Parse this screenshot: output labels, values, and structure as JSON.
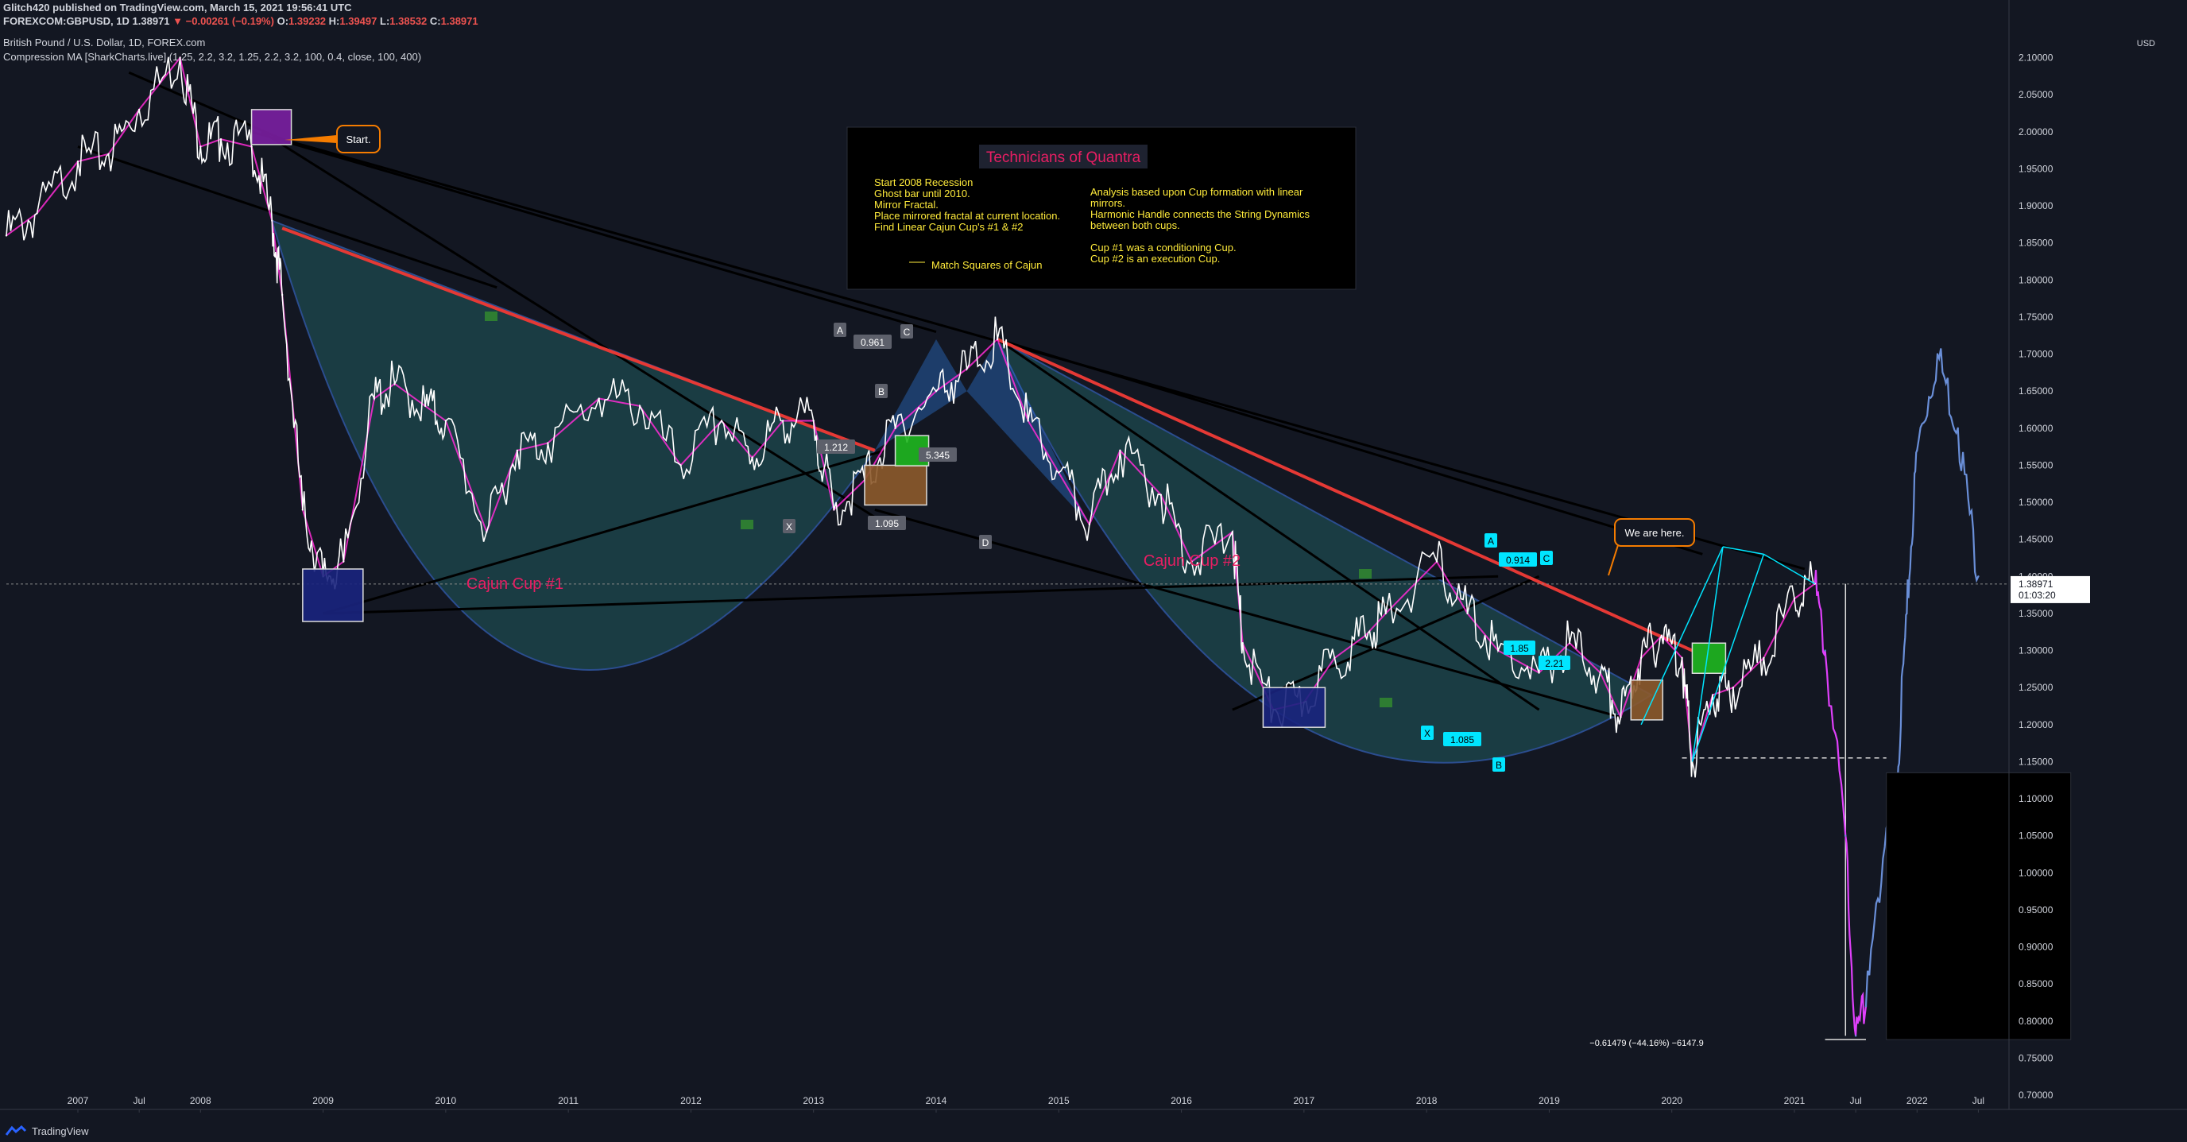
{
  "header": {
    "publish_line": "Glitch420 published on TradingView.com, March 15, 2021 19:56:41 UTC",
    "symbol": "FOREXCOM:GBPUSD, 1D",
    "last_price": "1.38971",
    "change": "▼ −0.00261 (−0.19%)",
    "ohlc": {
      "o_label": "O:",
      "o": "1.39232",
      "h_label": "H:",
      "h": "1.39497",
      "l_label": "L:",
      "l": "1.38532",
      "c_label": "C:",
      "c": "1.38971"
    },
    "instrument_name": "British Pound / U.S. Dollar, 1D, FOREX.com",
    "indicator": "Compression MA [SharkCharts.live] (1.25, 2.2, 3.2, 1.25, 2.2, 3.2, 100, 0.4, close, 100, 400)"
  },
  "info_box": {
    "title": "Technicians of Quantra",
    "left_lines": [
      "Start 2008 Recession",
      "Ghost bar until 2010.",
      "Mirror Fractal.",
      "Place mirrored fractal at current location.",
      "  Find Linear Cajun Cup's #1 & #2"
    ],
    "legend_label": "Match Squares of Cajun",
    "right_lines": [
      "Analysis based upon Cup formation with linear",
      "mirrors.",
      "Harmonic Handle connects the String Dynamics",
      "between both cups.",
      "",
      "Cup #1 was a conditioning Cup.",
      "Cup #2 is an execution Cup."
    ]
  },
  "annotations": {
    "start": "Start.",
    "we_are_here": "We are here.",
    "cup1": "Cajun Cup #1",
    "cup2": "Cajun Cup #2",
    "drop_measure": "−0.61479 (−44.16%) −6147.9",
    "pattern1": {
      "A": "A",
      "B": "B",
      "C": "C",
      "D": "D",
      "X": "X",
      "r1": "0.961",
      "r2": "1.212",
      "r3": "5.345",
      "r4": "1.095"
    },
    "pattern2": {
      "A": "A",
      "B": "B",
      "C": "C",
      "X": "X",
      "r1": "0.914",
      "r2": "1.085",
      "r3": "1.85",
      "r4": "2.21"
    }
  },
  "price_axis": {
    "currency": "USD",
    "ticks": [
      "2.10000",
      "2.05000",
      "2.00000",
      "1.95000",
      "1.90000",
      "1.85000",
      "1.80000",
      "1.75000",
      "1.70000",
      "1.65000",
      "1.60000",
      "1.55000",
      "1.50000",
      "1.45000",
      "1.40000",
      "1.35000",
      "1.30000",
      "1.25000",
      "1.20000",
      "1.15000",
      "1.10000",
      "1.05000",
      "1.00000",
      "0.95000",
      "0.90000",
      "0.85000",
      "0.80000",
      "0.75000",
      "0.70000"
    ],
    "current_price": "1.38971",
    "countdown": "01:03:20"
  },
  "time_axis": {
    "ticks": [
      "2007",
      "Jul",
      "2008",
      "2009",
      "2010",
      "2011",
      "2012",
      "2013",
      "2014",
      "2015",
      "2016",
      "2017",
      "2018",
      "2019",
      "2020",
      "2021",
      "Jul",
      "2022",
      "Jul"
    ]
  },
  "footer": {
    "brand": "TradingView"
  },
  "colors": {
    "background": "#131722",
    "price_line": "#ffffff",
    "ma_line": "#ff2bd6",
    "trendline_red": "#e53935",
    "projection": "#6a8fd8",
    "projection_pink": "#e040fb",
    "cup_fill": "#1d4a4f",
    "harmonic": "#2b6cc4",
    "accent_text": "#e91e63",
    "info_text": "#ffeb3b"
  },
  "chart_data": {
    "type": "line",
    "title": "British Pound / U.S. Dollar, 1D, FOREX.com",
    "ylabel": "USD",
    "ylim": [
      0.7,
      2.15
    ],
    "x_range": [
      "2006-06",
      "2022-10"
    ],
    "grid": false,
    "series": [
      {
        "name": "GBPUSD",
        "x": [
          "2006-06",
          "2006-09",
          "2007-01",
          "2007-04",
          "2007-07",
          "2007-11",
          "2008-01",
          "2008-03",
          "2008-06",
          "2008-08",
          "2008-09",
          "2008-11",
          "2009-01",
          "2009-03",
          "2009-06",
          "2009-08",
          "2009-11",
          "2010-01",
          "2010-05",
          "2010-08",
          "2010-11",
          "2011-04",
          "2011-08",
          "2011-12",
          "2012-04",
          "2012-07",
          "2012-10",
          "2013-01",
          "2013-03",
          "2013-06",
          "2013-09",
          "2014-01",
          "2014-04",
          "2014-07",
          "2014-10",
          "2015-01",
          "2015-04",
          "2015-07",
          "2015-11",
          "2016-02",
          "2016-06",
          "2016-07",
          "2016-10",
          "2017-01",
          "2017-04",
          "2017-07",
          "2017-09",
          "2018-02",
          "2018-05",
          "2018-08",
          "2018-12",
          "2019-03",
          "2019-06",
          "2019-08",
          "2019-10",
          "2019-12",
          "2020-02",
          "2020-03",
          "2020-05",
          "2020-07",
          "2020-10",
          "2021-01",
          "2021-03"
        ],
        "values": [
          1.86,
          1.89,
          1.96,
          1.97,
          2.03,
          2.1,
          1.98,
          1.99,
          1.98,
          1.88,
          1.78,
          1.49,
          1.4,
          1.42,
          1.64,
          1.66,
          1.63,
          1.61,
          1.46,
          1.57,
          1.58,
          1.64,
          1.63,
          1.55,
          1.61,
          1.56,
          1.61,
          1.61,
          1.49,
          1.53,
          1.6,
          1.65,
          1.68,
          1.72,
          1.61,
          1.54,
          1.47,
          1.57,
          1.51,
          1.42,
          1.46,
          1.31,
          1.22,
          1.23,
          1.29,
          1.32,
          1.35,
          1.42,
          1.35,
          1.3,
          1.27,
          1.31,
          1.27,
          1.21,
          1.29,
          1.32,
          1.29,
          1.15,
          1.24,
          1.25,
          1.29,
          1.37,
          1.39
        ]
      },
      {
        "name": "Projection",
        "x": [
          "2021-04",
          "2021-06",
          "2021-07",
          "2021-08",
          "2021-10",
          "2021-11",
          "2021-12",
          "2022-01",
          "2022-03",
          "2022-05",
          "2022-07"
        ],
        "values": [
          1.3,
          1.05,
          0.78,
          0.82,
          1.06,
          1.12,
          1.35,
          1.57,
          1.7,
          1.6,
          1.4
        ]
      }
    ]
  }
}
